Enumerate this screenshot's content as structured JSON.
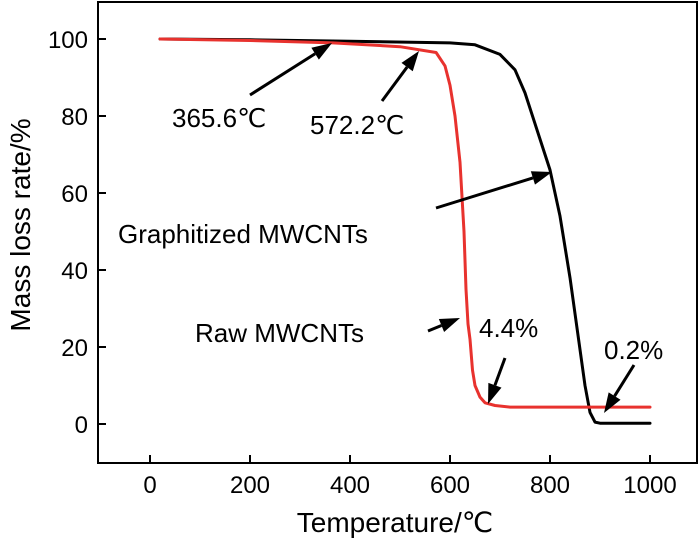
{
  "chart_data": {
    "type": "line",
    "title": "",
    "xlabel": "Temperature/℃",
    "ylabel": "Mass loss rate/%",
    "xlim": [
      -100,
      1060
    ],
    "ylim": [
      -10,
      110
    ],
    "xticks": [
      0,
      200,
      400,
      600,
      800,
      1000
    ],
    "yticks": [
      0,
      20,
      40,
      60,
      80,
      100
    ],
    "grid": false,
    "series": [
      {
        "name": "Graphitized MWCNTs",
        "color": "#000000",
        "x": [
          20,
          200,
          400,
          600,
          650,
          700,
          730,
          750,
          770,
          790,
          800,
          820,
          840,
          855,
          870,
          880,
          890,
          900,
          1000
        ],
        "y": [
          100,
          99.8,
          99.4,
          99,
          98.5,
          96,
          92,
          86,
          78,
          70,
          66,
          54,
          38,
          24,
          10,
          3,
          0.5,
          0.2,
          0.2
        ]
      },
      {
        "name": "Raw MWCNTs",
        "color": "#e8322e",
        "x": [
          20,
          200,
          365.6,
          500,
          572.2,
          590,
          600,
          610,
          620,
          628,
          632,
          636,
          640,
          645,
          650,
          660,
          670,
          690,
          720,
          800,
          900,
          1000
        ],
        "y": [
          100,
          99.6,
          99,
          98,
          96.5,
          93,
          88,
          80,
          68,
          50,
          35,
          26,
          22,
          14,
          10,
          7,
          5.5,
          4.8,
          4.4,
          4.4,
          4.4,
          4.4
        ]
      }
    ],
    "annotations": [
      {
        "id": "t1",
        "text": "365.6℃"
      },
      {
        "id": "t2",
        "text": "572.2℃"
      },
      {
        "id": "graph",
        "text": "Graphitized MWCNTs"
      },
      {
        "id": "raw",
        "text": "Raw MWCNTs"
      },
      {
        "id": "p44",
        "text": "4.4%"
      },
      {
        "id": "p02",
        "text": "0.2%"
      }
    ]
  }
}
